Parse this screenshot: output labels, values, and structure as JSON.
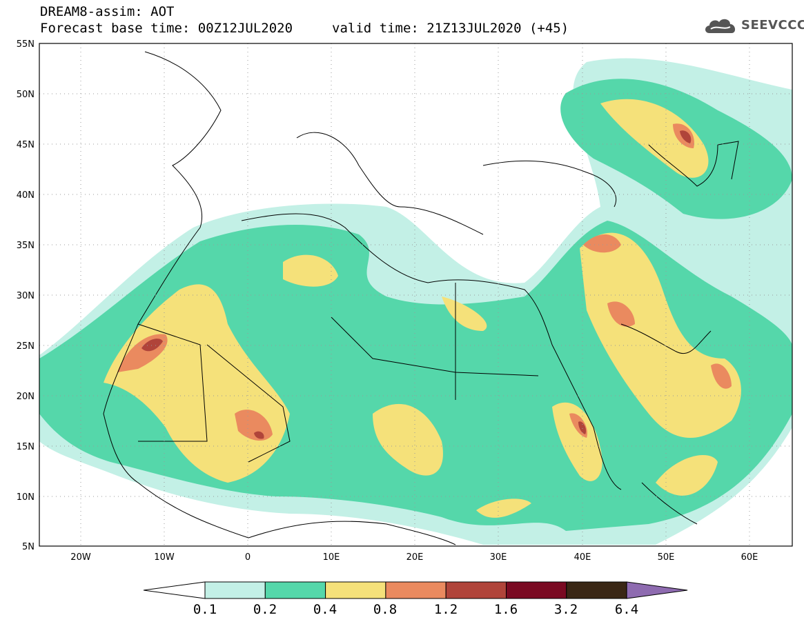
{
  "header": {
    "title": "DREAM8-assim: AOT",
    "base_time": "Forecast base time: 00Z12JUL2020",
    "valid_time": "valid time: 21Z13JUL2020 (+45)"
  },
  "logo": {
    "text": "SEEVCCC",
    "icon": "cloud-icon"
  },
  "map": {
    "lon_range": [
      -25,
      65
    ],
    "lat_range": [
      5,
      55
    ],
    "lat_ticks": [
      "55N",
      "50N",
      "45N",
      "40N",
      "35N",
      "30N",
      "25N",
      "20N",
      "15N",
      "10N",
      "5N"
    ],
    "lon_ticks": [
      "20W",
      "10W",
      "0",
      "10E",
      "20E",
      "30E",
      "40E",
      "50E",
      "60E"
    ]
  },
  "colorbar": {
    "labels": [
      "0.1",
      "0.2",
      "0.4",
      "0.8",
      "1.2",
      "1.6",
      "3.2",
      "6.4"
    ],
    "colors": [
      "#c3f0e6",
      "#55d7aa",
      "#f5e17a",
      "#ea8a5f",
      "#b0443a",
      "#7a0a22",
      "#3a2715",
      "#8e6bb0"
    ]
  }
}
